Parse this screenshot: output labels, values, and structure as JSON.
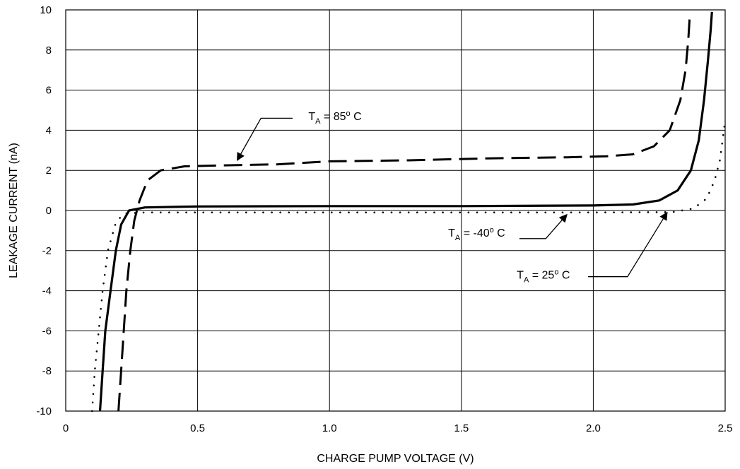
{
  "chart_data": {
    "type": "line",
    "title": "",
    "xlabel": "CHARGE PUMP VOLTAGE (V)",
    "ylabel": "LEAKAGE CURRENT (nA)",
    "xlim": [
      0,
      2.5
    ],
    "ylim": [
      -10,
      10
    ],
    "xticks": [
      0,
      0.5,
      1.0,
      1.5,
      2.0,
      2.5
    ],
    "xtick_labels": [
      "0",
      "0.5",
      "1.0",
      "1.5",
      "2.0",
      "2.5"
    ],
    "yticks": [
      -10,
      -8,
      -6,
      -4,
      -2,
      0,
      2,
      4,
      6,
      8,
      10
    ],
    "ytick_labels": [
      "-10",
      "-8",
      "-6",
      "-4",
      "-2",
      "0",
      "2",
      "4",
      "6",
      "8",
      "10"
    ],
    "grid": true,
    "series": [
      {
        "key": "t85",
        "style": "dashed",
        "annotation": {
          "prefix": "T",
          "sub": "A",
          "mid": " = 85",
          "sup": "o",
          "suffix": " C"
        },
        "points": [
          [
            0.2,
            -10
          ],
          [
            0.21,
            -8
          ],
          [
            0.22,
            -6
          ],
          [
            0.23,
            -4
          ],
          [
            0.245,
            -2
          ],
          [
            0.26,
            -0.5
          ],
          [
            0.28,
            0.5
          ],
          [
            0.31,
            1.5
          ],
          [
            0.36,
            2.0
          ],
          [
            0.45,
            2.2
          ],
          [
            0.6,
            2.25
          ],
          [
            0.8,
            2.3
          ],
          [
            1.0,
            2.45
          ],
          [
            1.3,
            2.5
          ],
          [
            1.6,
            2.6
          ],
          [
            1.9,
            2.65
          ],
          [
            2.05,
            2.7
          ],
          [
            2.15,
            2.8
          ],
          [
            2.23,
            3.2
          ],
          [
            2.29,
            4.0
          ],
          [
            2.33,
            5.5
          ],
          [
            2.35,
            7.0
          ],
          [
            2.36,
            8.5
          ],
          [
            2.365,
            9.5
          ],
          [
            2.37,
            9.9
          ]
        ]
      },
      {
        "key": "t25",
        "style": "solid",
        "annotation": {
          "prefix": "T",
          "sub": "A",
          "mid": " = 25",
          "sup": "o",
          "suffix": " C"
        },
        "points": [
          [
            0.13,
            -10
          ],
          [
            0.14,
            -8
          ],
          [
            0.15,
            -6
          ],
          [
            0.17,
            -4
          ],
          [
            0.19,
            -2
          ],
          [
            0.21,
            -0.7
          ],
          [
            0.24,
            0
          ],
          [
            0.3,
            0.15
          ],
          [
            0.5,
            0.2
          ],
          [
            1.0,
            0.22
          ],
          [
            1.5,
            0.22
          ],
          [
            2.0,
            0.25
          ],
          [
            2.15,
            0.3
          ],
          [
            2.25,
            0.5
          ],
          [
            2.32,
            1.0
          ],
          [
            2.37,
            2.0
          ],
          [
            2.4,
            3.5
          ],
          [
            2.42,
            5.5
          ],
          [
            2.435,
            7.5
          ],
          [
            2.445,
            9.0
          ],
          [
            2.45,
            9.9
          ]
        ]
      },
      {
        "key": "tm40",
        "style": "dotted",
        "annotation": {
          "prefix": "T",
          "sub": "A",
          "mid": " = -40",
          "sup": "o",
          "suffix": " C"
        },
        "points": [
          [
            0.1,
            -10
          ],
          [
            0.11,
            -8
          ],
          [
            0.125,
            -6
          ],
          [
            0.14,
            -4
          ],
          [
            0.16,
            -2
          ],
          [
            0.19,
            -0.6
          ],
          [
            0.22,
            -0.15
          ],
          [
            0.3,
            -0.1
          ],
          [
            1.0,
            -0.1
          ],
          [
            1.5,
            -0.1
          ],
          [
            2.0,
            -0.1
          ],
          [
            2.3,
            -0.08
          ],
          [
            2.38,
            0.1
          ],
          [
            2.43,
            0.6
          ],
          [
            2.46,
            1.5
          ],
          [
            2.48,
            2.5
          ],
          [
            2.49,
            3.5
          ],
          [
            2.5,
            4.5
          ]
        ]
      }
    ],
    "annotations": [
      {
        "series": "t85",
        "text_x": 0.92,
        "text_y": 4.5,
        "line": [
          [
            0.86,
            4.6
          ],
          [
            0.74,
            4.6
          ],
          [
            0.65,
            2.5
          ]
        ]
      },
      {
        "series": "tm40",
        "text_x": 1.45,
        "text_y": -1.3,
        "line": [
          [
            1.72,
            -1.4
          ],
          [
            1.82,
            -1.4
          ],
          [
            1.9,
            -0.2
          ]
        ]
      },
      {
        "series": "t25",
        "text_x": 1.71,
        "text_y": -3.4,
        "line": [
          [
            1.98,
            -3.3
          ],
          [
            2.13,
            -3.3
          ],
          [
            2.28,
            -0.1
          ]
        ]
      }
    ]
  }
}
